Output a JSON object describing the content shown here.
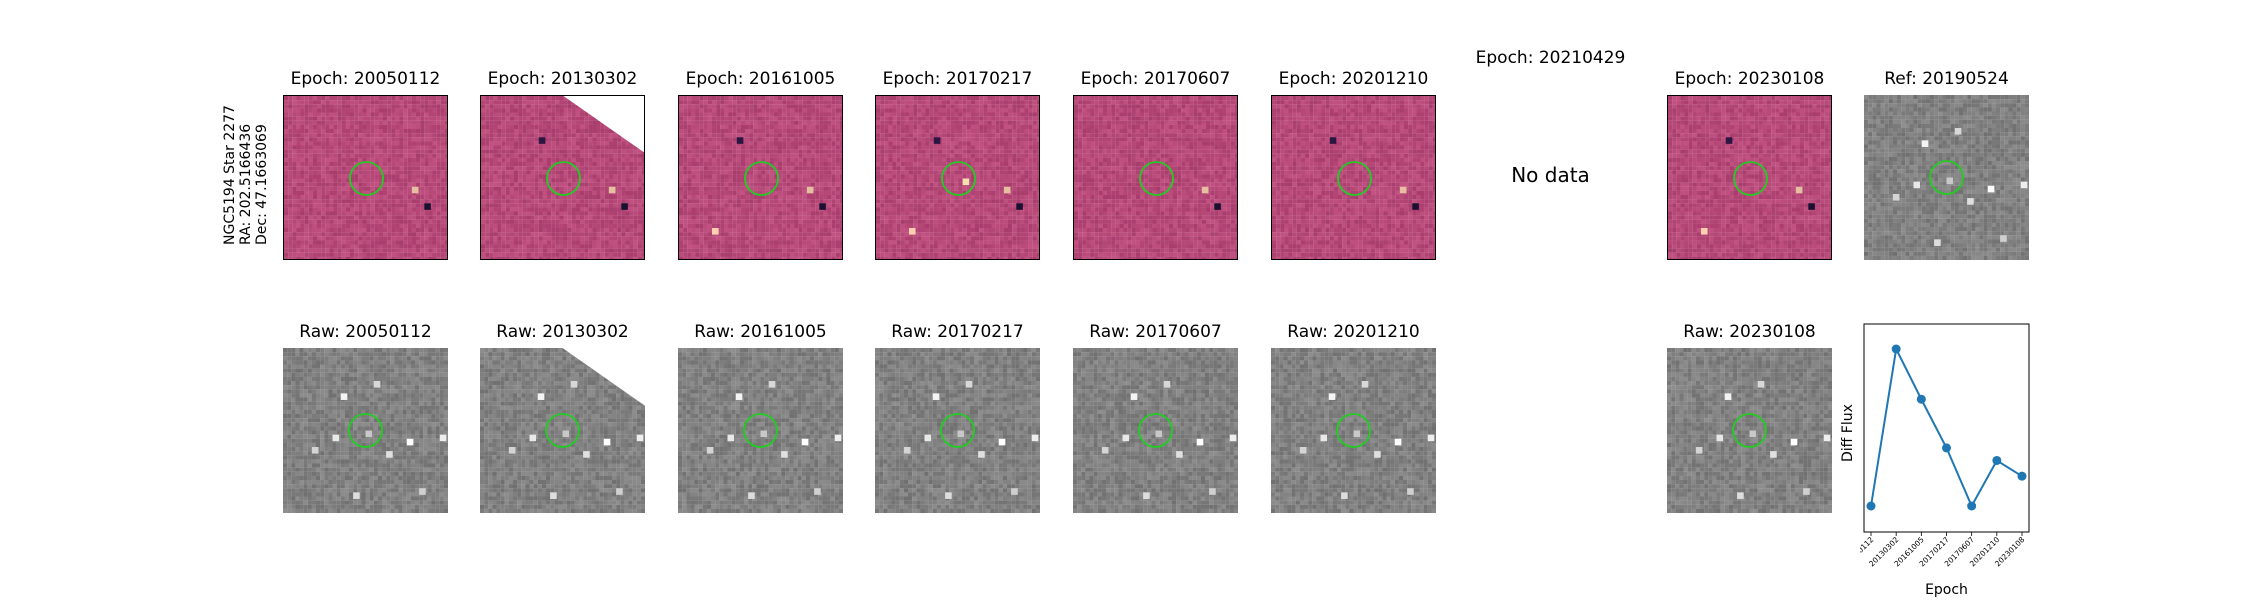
{
  "figure": {
    "row_label": [
      "NGC5194 Star 2277",
      "RA: 202.5166436",
      "Dec: 47.1663069"
    ],
    "no_data_text": "No data",
    "diff_panels": [
      {
        "title": "Epoch: 20050112",
        "has_data": true,
        "variant": 0
      },
      {
        "title": "Epoch: 20130302",
        "has_data": true,
        "variant": 1,
        "cut_corner": true
      },
      {
        "title": "Epoch: 20161005",
        "has_data": true,
        "variant": 2
      },
      {
        "title": "Epoch: 20170217",
        "has_data": true,
        "variant": 3
      },
      {
        "title": "Epoch: 20170607",
        "has_data": true,
        "variant": 4
      },
      {
        "title": "Epoch: 20201210",
        "has_data": true,
        "variant": 5
      },
      {
        "title": "Epoch: 20210429",
        "has_data": false
      },
      {
        "title": "Epoch: 20230108",
        "has_data": true,
        "variant": 6
      },
      {
        "title": "Ref: 20190524",
        "has_data": true,
        "kind": "ref"
      }
    ],
    "raw_panels": [
      {
        "title": "Raw: 20050112",
        "variant": 0
      },
      {
        "title": "Raw: 20130302",
        "variant": 1,
        "cut_corner": true
      },
      {
        "title": "Raw: 20161005",
        "variant": 2
      },
      {
        "title": "Raw: 20170217",
        "variant": 3
      },
      {
        "title": "Raw: 20170607",
        "variant": 4
      },
      {
        "title": "Raw: 20201210",
        "variant": 5
      },
      {
        "title": "Raw: 20230108",
        "variant": 6
      }
    ]
  },
  "chart_data": {
    "type": "line",
    "title": "",
    "xlabel": "Epoch",
    "ylabel": "Diff Flux",
    "categories": [
      "20050112",
      "20130302",
      "20161005",
      "20170217",
      "20170607",
      "20201210",
      "20230108"
    ],
    "values": [
      0.0,
      1.0,
      0.68,
      0.37,
      0.0,
      0.29,
      0.19
    ],
    "y_ticks_shown": false,
    "grid": false,
    "color": "#1f77b4"
  },
  "colors": {
    "diff_base": "#b0476e",
    "raw_base": "#7d7d7d",
    "aperture": "#22cc22",
    "line": "#1f77b4"
  }
}
